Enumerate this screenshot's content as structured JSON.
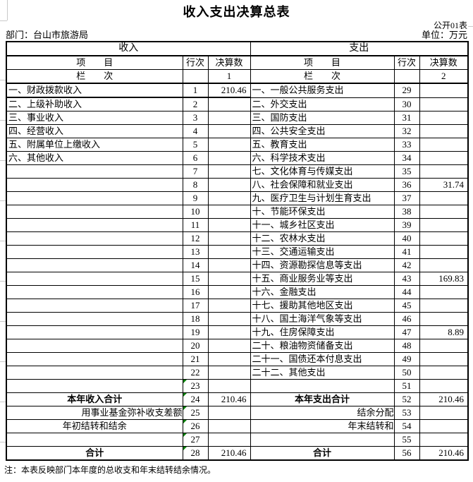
{
  "header": {
    "title": "收入支出决算总表",
    "doc_label": "公开01表",
    "department": "部门：台山市旅游局",
    "unit": "单位：万元"
  },
  "table": {
    "income_header": "收入",
    "expense_header": "支出",
    "col_item": "项　　目",
    "col_line": "行次",
    "col_amount": "决算数",
    "col_index_label": "栏　　次",
    "income_col_no": "1",
    "expense_col_no": "2",
    "income_rows": [
      {
        "label": "一、财政拨款收入",
        "line": "1",
        "value": "210.46",
        "thick": true
      },
      {
        "label": "二、上级补助收入",
        "line": "2",
        "value": ""
      },
      {
        "label": "三、事业收入",
        "line": "3",
        "value": ""
      },
      {
        "label": "四、经营收入",
        "line": "4",
        "value": ""
      },
      {
        "label": "五、附属单位上缴收入",
        "line": "5",
        "value": ""
      },
      {
        "label": "六、其他收入",
        "line": "6",
        "value": ""
      },
      {
        "label": "",
        "line": "7",
        "value": ""
      },
      {
        "label": "",
        "line": "8",
        "value": ""
      },
      {
        "label": "",
        "line": "9",
        "value": ""
      },
      {
        "label": "",
        "line": "10",
        "value": ""
      },
      {
        "label": "",
        "line": "11",
        "value": ""
      },
      {
        "label": "",
        "line": "12",
        "value": ""
      },
      {
        "label": "",
        "line": "13",
        "value": ""
      },
      {
        "label": "",
        "line": "14",
        "value": ""
      },
      {
        "label": "",
        "line": "15",
        "value": ""
      },
      {
        "label": "",
        "line": "16",
        "value": ""
      },
      {
        "label": "",
        "line": "17",
        "value": ""
      },
      {
        "label": "",
        "line": "18",
        "value": ""
      },
      {
        "label": "",
        "line": "19",
        "value": ""
      },
      {
        "label": "",
        "line": "20",
        "value": ""
      },
      {
        "label": "",
        "line": "21",
        "value": ""
      },
      {
        "label": "",
        "line": "22",
        "value": ""
      },
      {
        "label": "",
        "line": "23",
        "value": "",
        "marker": true
      },
      {
        "label": "本年收入合计",
        "line": "24",
        "value": "210.46",
        "bold": true,
        "align": "center",
        "marker": true
      },
      {
        "label": "用事业基金弥补收支差额",
        "line": "25",
        "value": "",
        "align": "right",
        "marker": true
      },
      {
        "label": "年初结转和结余",
        "line": "26",
        "value": "",
        "align": "center",
        "marker": true
      },
      {
        "label": "",
        "line": "27",
        "value": "",
        "marker": true
      },
      {
        "label": "合计",
        "line": "28",
        "value": "210.46",
        "bold": true,
        "align": "center",
        "marker": true
      }
    ],
    "expense_rows": [
      {
        "label": "一、一般公共服务支出",
        "line": "29",
        "value": ""
      },
      {
        "label": "二、外交支出",
        "line": "30",
        "value": ""
      },
      {
        "label": "三、国防支出",
        "line": "31",
        "value": ""
      },
      {
        "label": "四、公共安全支出",
        "line": "32",
        "value": ""
      },
      {
        "label": "五、教育支出",
        "line": "33",
        "value": ""
      },
      {
        "label": "六、科学技术支出",
        "line": "34",
        "value": ""
      },
      {
        "label": "七、文化体育与传媒支出",
        "line": "35",
        "value": ""
      },
      {
        "label": "八、社会保障和就业支出",
        "line": "36",
        "value": "31.74"
      },
      {
        "label": "九、医疗卫生与计划生育支出",
        "line": "37",
        "value": ""
      },
      {
        "label": "十、节能环保支出",
        "line": "38",
        "value": ""
      },
      {
        "label": "十一、城乡社区支出",
        "line": "39",
        "value": ""
      },
      {
        "label": "十二、农林水支出",
        "line": "40",
        "value": ""
      },
      {
        "label": "十三、交通运输支出",
        "line": "41",
        "value": ""
      },
      {
        "label": "十四、资源勘探信息等支出",
        "line": "42",
        "value": ""
      },
      {
        "label": "十五、商业服务业等支出",
        "line": "43",
        "value": "169.83"
      },
      {
        "label": "十六、金融支出",
        "line": "44",
        "value": ""
      },
      {
        "label": "十七、援助其他地区支出",
        "line": "45",
        "value": ""
      },
      {
        "label": "十八、国土海洋气象等支出",
        "line": "46",
        "value": ""
      },
      {
        "label": "十九、住房保障支出",
        "line": "47",
        "value": "8.89"
      },
      {
        "label": "二十、粮油物资储备支出",
        "line": "48",
        "value": ""
      },
      {
        "label": "二十一、国债还本付息支出",
        "line": "49",
        "value": ""
      },
      {
        "label": "二十二、其他支出",
        "line": "50",
        "value": ""
      },
      {
        "label": "",
        "line": "51",
        "value": ""
      },
      {
        "label": "本年支出合计",
        "line": "52",
        "value": "210.46",
        "bold": true,
        "align": "center"
      },
      {
        "label": "结余分配",
        "line": "53",
        "value": "",
        "align": "right"
      },
      {
        "label": "年末结转和",
        "line": "54",
        "value": "",
        "align": "right"
      },
      {
        "label": "",
        "line": "55",
        "value": ""
      },
      {
        "label": "合计",
        "line": "56",
        "value": "210.46",
        "bold": true,
        "align": "center"
      }
    ]
  },
  "note": "注：本表反映部门本年度的总收支和年末结转结余情况。",
  "colors": {
    "marker_green": "#008000",
    "border_black": "#000000"
  }
}
